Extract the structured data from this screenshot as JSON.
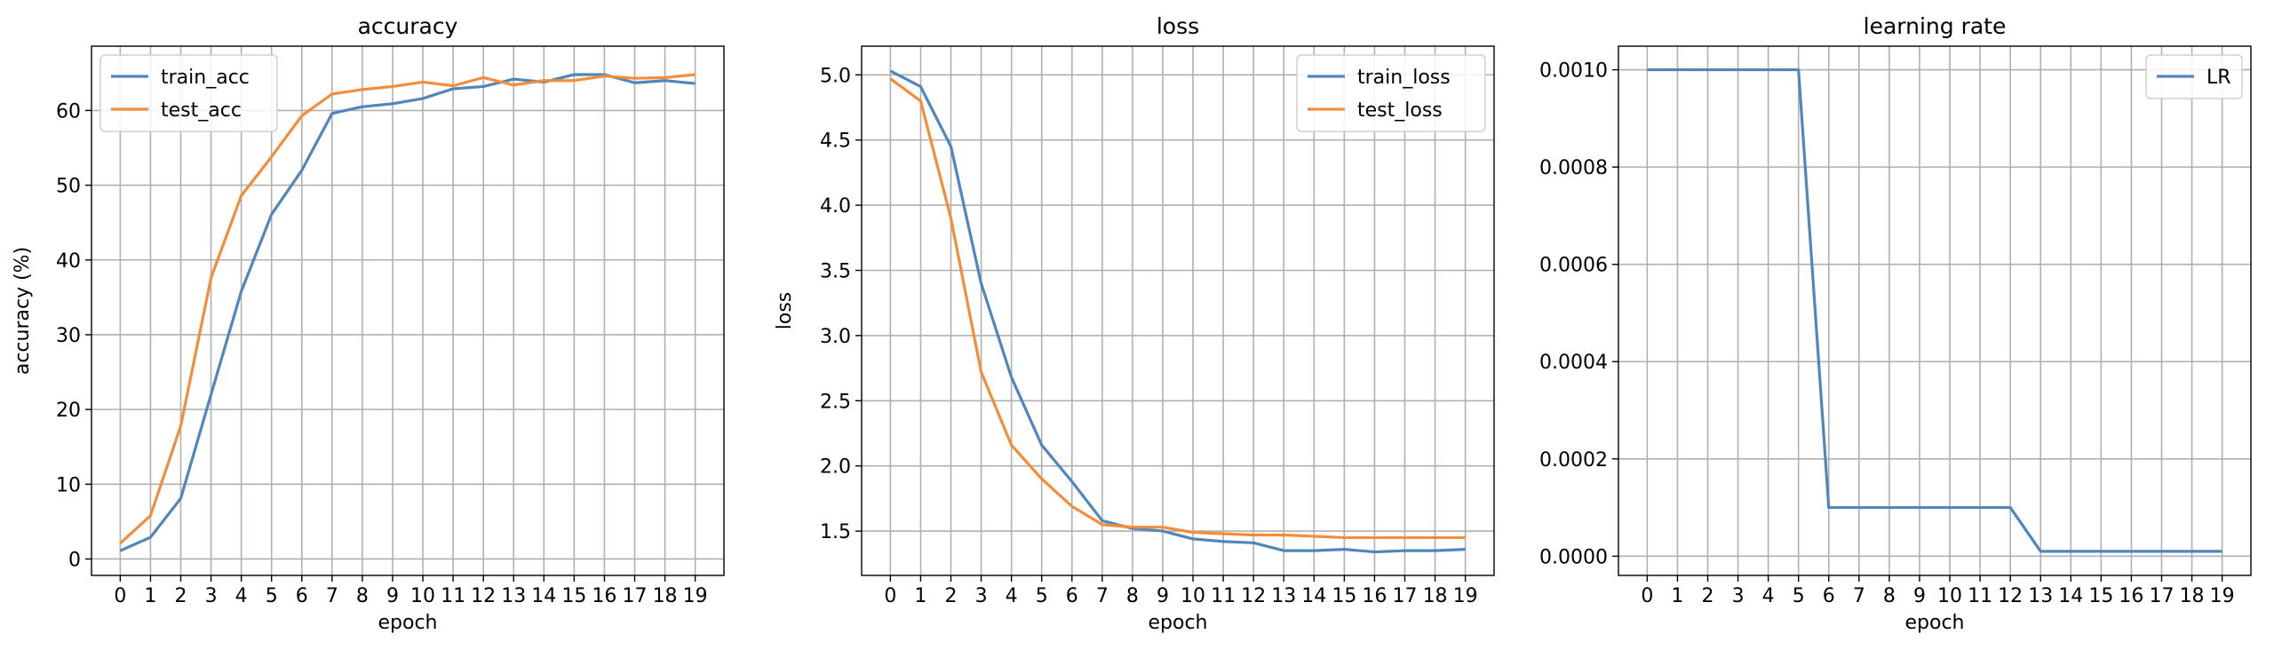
{
  "chart_data": [
    {
      "type": "line",
      "title": "accuracy",
      "xlabel": "epoch",
      "ylabel": "accuracy (%)",
      "x": [
        0,
        1,
        2,
        3,
        4,
        5,
        6,
        7,
        8,
        9,
        10,
        11,
        12,
        13,
        14,
        15,
        16,
        17,
        18,
        19
      ],
      "xticks": [
        "0",
        "1",
        "2",
        "3",
        "4",
        "5",
        "6",
        "7",
        "8",
        "9",
        "10",
        "11",
        "12",
        "13",
        "14",
        "15",
        "16",
        "17",
        "18",
        "19"
      ],
      "yticks": [
        "0",
        "10",
        "20",
        "30",
        "40",
        "50",
        "60"
      ],
      "ytick_values": [
        0,
        10,
        20,
        30,
        40,
        50,
        60
      ],
      "xlim": [
        -0.95,
        19.95
      ],
      "ylim": [
        -2.2,
        68.6
      ],
      "grid": true,
      "legend_position": "top-left",
      "series": [
        {
          "name": "train_acc",
          "color": "#4f86be",
          "values": [
            1.1,
            2.9,
            8.1,
            22.0,
            35.8,
            46.1,
            52.0,
            59.6,
            60.5,
            60.9,
            61.6,
            62.9,
            63.2,
            64.2,
            63.8,
            64.8,
            64.8,
            63.7,
            64.0,
            63.6
          ]
        },
        {
          "name": "test_acc",
          "color": "#f28e3a",
          "values": [
            2.1,
            5.8,
            17.8,
            37.6,
            48.6,
            53.8,
            59.3,
            62.2,
            62.8,
            63.2,
            63.8,
            63.3,
            64.4,
            63.4,
            64.0,
            64.0,
            64.6,
            64.3,
            64.4,
            64.8
          ]
        }
      ]
    },
    {
      "type": "line",
      "title": "loss",
      "xlabel": "epoch",
      "ylabel": "loss",
      "x": [
        0,
        1,
        2,
        3,
        4,
        5,
        6,
        7,
        8,
        9,
        10,
        11,
        12,
        13,
        14,
        15,
        16,
        17,
        18,
        19
      ],
      "xticks": [
        "0",
        "1",
        "2",
        "3",
        "4",
        "5",
        "6",
        "7",
        "8",
        "9",
        "10",
        "11",
        "12",
        "13",
        "14",
        "15",
        "16",
        "17",
        "18",
        "19"
      ],
      "yticks": [
        "1.5",
        "2.0",
        "2.5",
        "3.0",
        "3.5",
        "4.0",
        "4.5",
        "5.0"
      ],
      "ytick_values": [
        1.5,
        2.0,
        2.5,
        3.0,
        3.5,
        4.0,
        4.5,
        5.0
      ],
      "xlim": [
        -0.95,
        19.95
      ],
      "ylim": [
        1.16,
        5.22
      ],
      "grid": true,
      "legend_position": "top-right",
      "series": [
        {
          "name": "train_loss",
          "color": "#4f86be",
          "values": [
            5.03,
            4.91,
            4.45,
            3.4,
            2.68,
            2.16,
            1.88,
            1.58,
            1.52,
            1.5,
            1.44,
            1.42,
            1.41,
            1.35,
            1.35,
            1.36,
            1.34,
            1.35,
            1.35,
            1.36
          ]
        },
        {
          "name": "test_loss",
          "color": "#f28e3a",
          "values": [
            4.97,
            4.8,
            3.9,
            2.72,
            2.16,
            1.9,
            1.69,
            1.55,
            1.53,
            1.53,
            1.49,
            1.48,
            1.47,
            1.47,
            1.46,
            1.45,
            1.45,
            1.45,
            1.45,
            1.45
          ]
        }
      ]
    },
    {
      "type": "line",
      "title": "learning rate",
      "xlabel": "epoch",
      "ylabel": "",
      "x": [
        0,
        1,
        2,
        3,
        4,
        5,
        6,
        7,
        8,
        9,
        10,
        11,
        12,
        13,
        14,
        15,
        16,
        17,
        18,
        19
      ],
      "xticks": [
        "0",
        "1",
        "2",
        "3",
        "4",
        "5",
        "6",
        "7",
        "8",
        "9",
        "10",
        "11",
        "12",
        "13",
        "14",
        "15",
        "16",
        "17",
        "18",
        "19"
      ],
      "yticks": [
        "0.0000",
        "0.0002",
        "0.0004",
        "0.0006",
        "0.0008",
        "0.0010"
      ],
      "ytick_values": [
        0.0,
        0.0002,
        0.0004,
        0.0006,
        0.0008,
        0.001
      ],
      "xlim": [
        -0.95,
        19.95
      ],
      "ylim": [
        -3.95e-05,
        0.0010485
      ],
      "grid": true,
      "legend_position": "top-right",
      "series": [
        {
          "name": "LR",
          "color": "#4f86be",
          "values": [
            0.001,
            0.001,
            0.001,
            0.001,
            0.001,
            0.001,
            0.0001,
            0.0001,
            0.0001,
            0.0001,
            0.0001,
            0.0001,
            0.0001,
            1e-05,
            1e-05,
            1e-05,
            1e-05,
            1e-05,
            1e-05,
            1e-05
          ]
        }
      ]
    }
  ]
}
